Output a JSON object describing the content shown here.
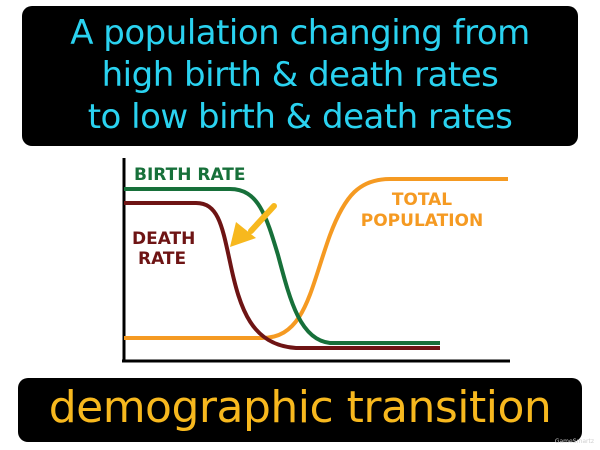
{
  "definition": {
    "text": "A population changing from\nhigh birth & death rates\nto low birth & death rates"
  },
  "term": {
    "text": "demographic transition"
  },
  "diagram": {
    "birth_rate_label": "BIRTH RATE",
    "death_rate_label_line1": "DEATH",
    "death_rate_label_line2": "RATE",
    "total_population_label_line1": "TOTAL",
    "total_population_label_line2": "POPULATION",
    "colors": {
      "birth_rate": "#17703a",
      "death_rate": "#6e1414",
      "total_population": "#f59a22",
      "arrow": "#f7b81e",
      "axes": "#000000"
    }
  },
  "brand": {
    "text": "GameSmartz"
  }
}
